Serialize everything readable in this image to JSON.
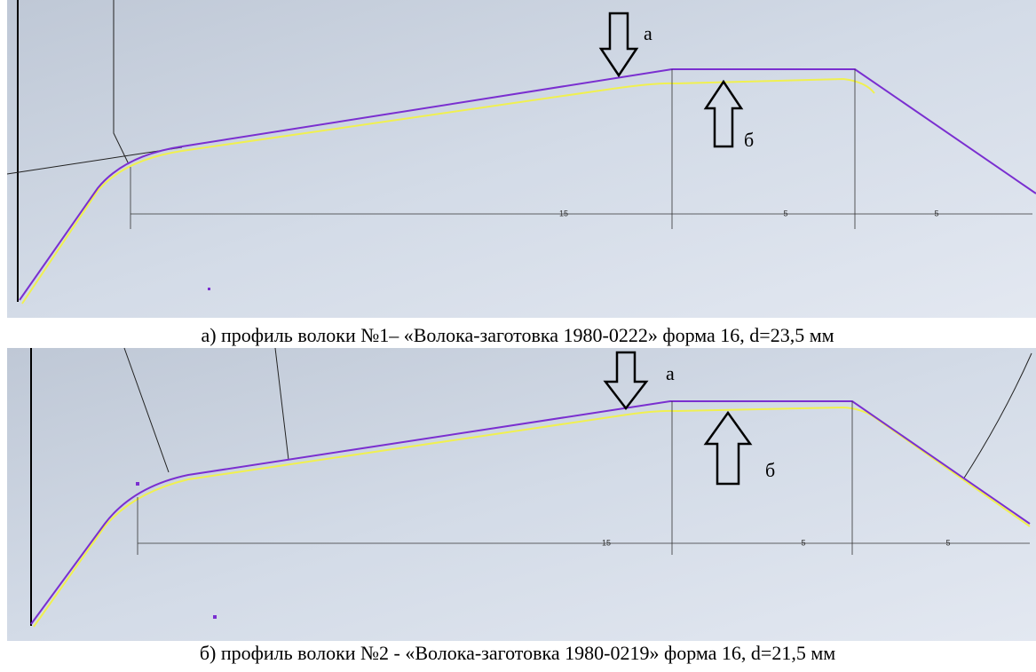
{
  "panels": [
    {
      "arrow_labels": [
        "а",
        "б"
      ],
      "dimensions": [
        15,
        5,
        5
      ],
      "caption": "а) профиль волоки №1– «Волока-заготовка 1980-0222» форма 16, d=23,5 мм"
    },
    {
      "arrow_labels": [
        "а",
        "б"
      ],
      "dimensions": [
        15,
        5,
        5
      ],
      "caption": "б) профиль волоки №2 - «Волока-заготовка 1980-0219» форма 16, d=21,5 мм"
    }
  ]
}
